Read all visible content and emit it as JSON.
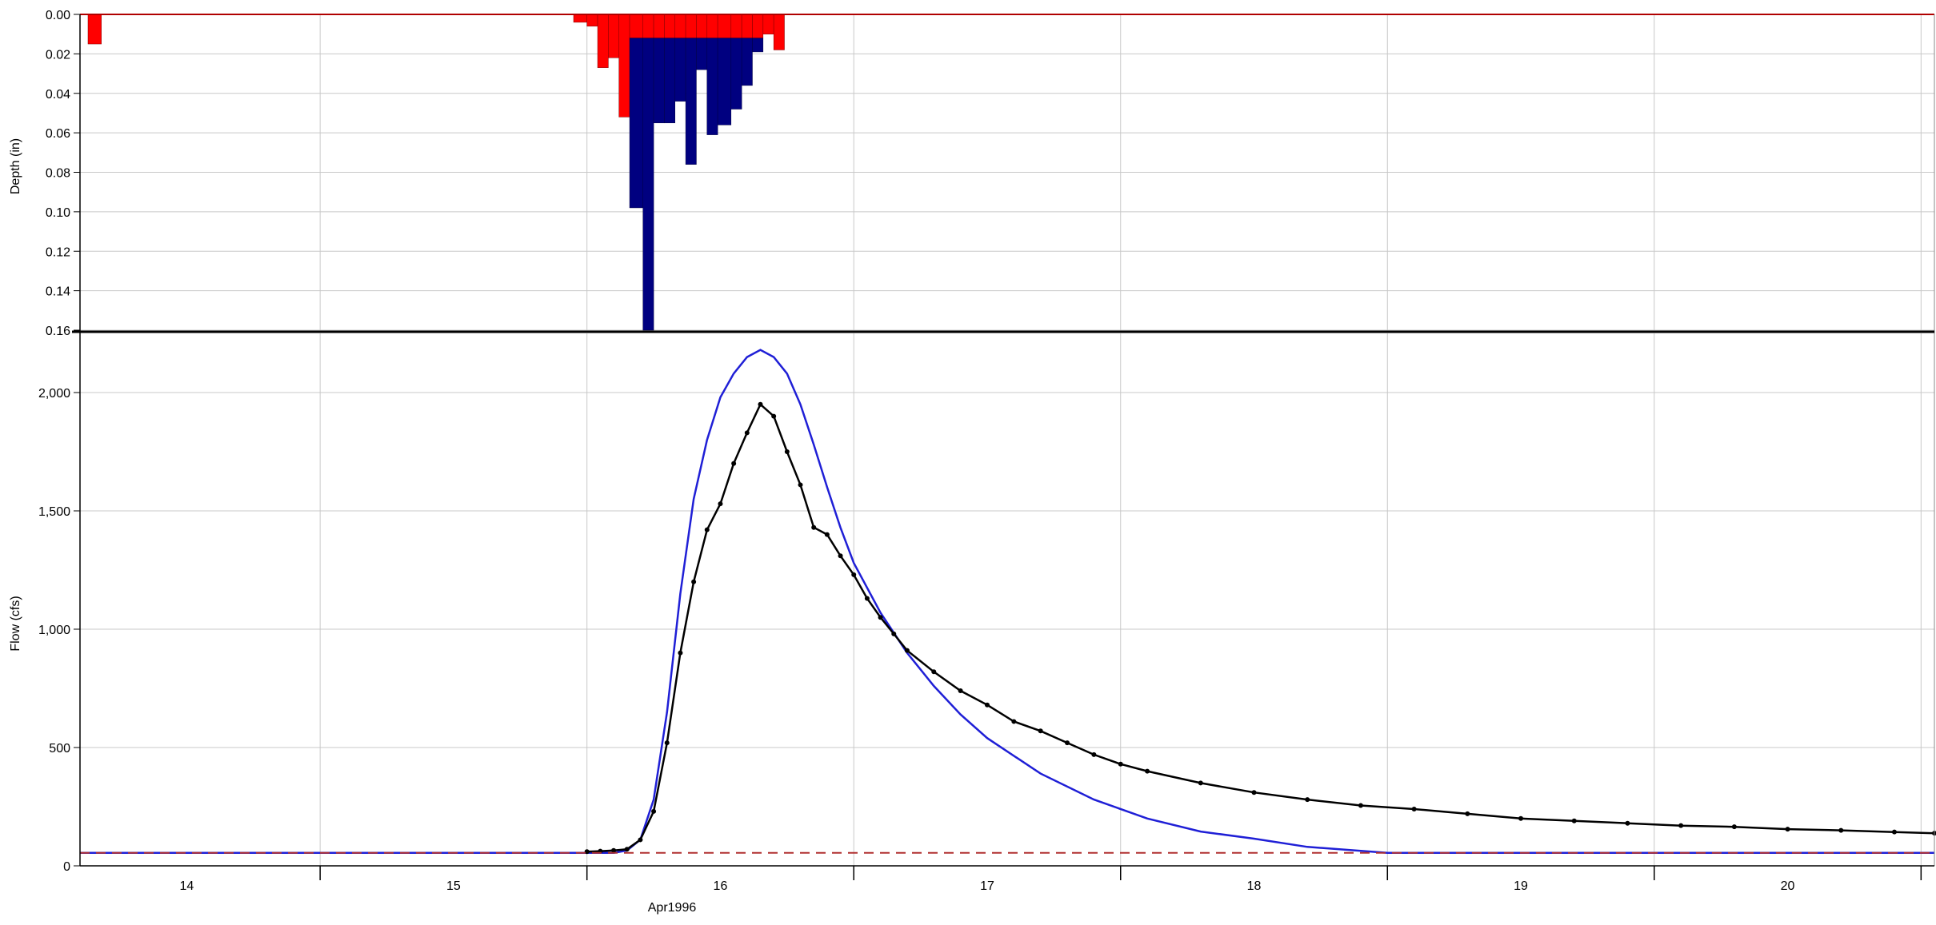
{
  "chart_data": {
    "type": "hydrograph",
    "colors": {
      "excess_precip": "#ff0000",
      "loss": "#000080",
      "observed_flow": "#000000",
      "computed_flow": "#1f1fd6",
      "baseflow": "#b03030",
      "grid": "#c8c8c8"
    },
    "x_axis": {
      "unit": "hours since 1996-04-13 00:00",
      "range": [
        13.6,
        20.55
      ],
      "ticks": [
        14,
        15,
        16,
        17,
        18,
        19,
        20
      ],
      "tick_labels": [
        "14",
        "15",
        "16",
        "17",
        "18",
        "19",
        "20"
      ],
      "label": "Apr1996",
      "grid": true
    },
    "precip_panel": {
      "ylabel": "Depth (in)",
      "ylim": [
        0,
        0.16
      ],
      "inverted": true,
      "yticks": [
        "0.00",
        "0.02",
        "0.04",
        "0.06",
        "0.08",
        "0.10",
        "0.12",
        "0.14",
        "0.16"
      ],
      "series": [
        {
          "role": "excess",
          "bars": [
            {
              "x0": 13.63,
              "x1": 13.68,
              "v": 0.015
            },
            {
              "x0": 15.45,
              "x1": 15.5,
              "v": 0.004
            },
            {
              "x0": 15.5,
              "x1": 15.54,
              "v": 0.006
            },
            {
              "x0": 15.54,
              "x1": 15.58,
              "v": 0.027
            },
            {
              "x0": 15.58,
              "x1": 15.62,
              "v": 0.022
            },
            {
              "x0": 15.62,
              "x1": 15.66,
              "v": 0.052
            },
            {
              "x0": 15.66,
              "x1": 15.71,
              "v": 0.012
            },
            {
              "x0": 15.71,
              "x1": 15.75,
              "v": 0.012
            },
            {
              "x0": 15.75,
              "x1": 15.79,
              "v": 0.012
            },
            {
              "x0": 15.79,
              "x1": 15.83,
              "v": 0.012
            },
            {
              "x0": 15.83,
              "x1": 15.87,
              "v": 0.012
            },
            {
              "x0": 15.87,
              "x1": 15.91,
              "v": 0.012
            },
            {
              "x0": 15.91,
              "x1": 15.95,
              "v": 0.012
            },
            {
              "x0": 15.95,
              "x1": 15.99,
              "v": 0.012
            },
            {
              "x0": 15.99,
              "x1": 16.04,
              "v": 0.012
            },
            {
              "x0": 16.04,
              "x1": 16.08,
              "v": 0.012
            },
            {
              "x0": 16.08,
              "x1": 16.12,
              "v": 0.012
            },
            {
              "x0": 16.12,
              "x1": 16.16,
              "v": 0.012
            },
            {
              "x0": 16.16,
              "x1": 16.2,
              "v": 0.01
            },
            {
              "x0": 16.2,
              "x1": 16.24,
              "v": 0.018
            }
          ]
        },
        {
          "role": "loss",
          "bars": [
            {
              "x0": 15.66,
              "x1": 15.71,
              "v": 0.098
            },
            {
              "x0": 15.71,
              "x1": 15.75,
              "v": 0.16
            },
            {
              "x0": 15.75,
              "x1": 15.79,
              "v": 0.055
            },
            {
              "x0": 15.79,
              "x1": 15.83,
              "v": 0.055
            },
            {
              "x0": 15.83,
              "x1": 15.87,
              "v": 0.044
            },
            {
              "x0": 15.87,
              "x1": 15.91,
              "v": 0.076
            },
            {
              "x0": 15.91,
              "x1": 15.95,
              "v": 0.028
            },
            {
              "x0": 15.95,
              "x1": 15.99,
              "v": 0.061
            },
            {
              "x0": 15.99,
              "x1": 16.04,
              "v": 0.056
            },
            {
              "x0": 16.04,
              "x1": 16.08,
              "v": 0.048
            },
            {
              "x0": 16.08,
              "x1": 16.12,
              "v": 0.036
            },
            {
              "x0": 16.12,
              "x1": 16.16,
              "v": 0.019
            },
            {
              "x0": 16.16,
              "x1": 16.2,
              "v": 0.0
            },
            {
              "x0": 16.2,
              "x1": 16.24,
              "v": 0.01
            }
          ]
        }
      ]
    },
    "flow_panel": {
      "ylabel": "Flow (cfs)",
      "ylim": [
        0,
        2250
      ],
      "yticks": [
        0,
        500,
        1000,
        1500,
        2000
      ],
      "ytick_labels": [
        "0",
        "500",
        "1,000",
        "1,500",
        "2,000"
      ],
      "series": [
        {
          "role": "computed",
          "style": "line",
          "x": [
            13.6,
            15.6,
            15.65,
            15.7,
            15.75,
            15.8,
            15.85,
            15.9,
            15.95,
            16.0,
            16.05,
            16.1,
            16.15,
            16.2,
            16.25,
            16.3,
            16.35,
            16.4,
            16.45,
            16.5,
            16.6,
            16.7,
            16.8,
            16.9,
            17.0,
            17.2,
            17.4,
            17.6,
            17.8,
            18.0,
            18.2,
            18.5,
            19.0,
            20.55
          ],
          "y": [
            55,
            55,
            65,
            110,
            280,
            650,
            1150,
            1550,
            1800,
            1980,
            2080,
            2150,
            2180,
            2150,
            2080,
            1950,
            1780,
            1600,
            1430,
            1280,
            1070,
            900,
            760,
            640,
            540,
            390,
            280,
            200,
            145,
            115,
            80,
            55,
            55,
            55
          ]
        },
        {
          "role": "observed",
          "style": "line-markers",
          "x": [
            15.5,
            15.55,
            15.6,
            15.65,
            15.7,
            15.75,
            15.8,
            15.85,
            15.9,
            15.95,
            16.0,
            16.05,
            16.1,
            16.15,
            16.2,
            16.25,
            16.3,
            16.35,
            16.4,
            16.45,
            16.5,
            16.55,
            16.6,
            16.65,
            16.7,
            16.8,
            16.9,
            17.0,
            17.1,
            17.2,
            17.3,
            17.4,
            17.5,
            17.6,
            17.8,
            18.0,
            18.2,
            18.4,
            18.6,
            18.8,
            19.0,
            19.2,
            19.4,
            19.6,
            19.8,
            20.0,
            20.2,
            20.4,
            20.55
          ],
          "y": [
            60,
            62,
            65,
            70,
            110,
            230,
            520,
            900,
            1200,
            1420,
            1530,
            1700,
            1830,
            1950,
            1900,
            1750,
            1610,
            1430,
            1400,
            1310,
            1230,
            1130,
            1050,
            980,
            910,
            820,
            740,
            680,
            610,
            570,
            520,
            470,
            430,
            400,
            350,
            310,
            280,
            255,
            240,
            220,
            200,
            190,
            180,
            170,
            165,
            155,
            150,
            143,
            138
          ]
        },
        {
          "role": "baseflow",
          "style": "dashed",
          "x": [
            13.6,
            20.55
          ],
          "y": [
            55,
            55
          ]
        }
      ]
    }
  }
}
